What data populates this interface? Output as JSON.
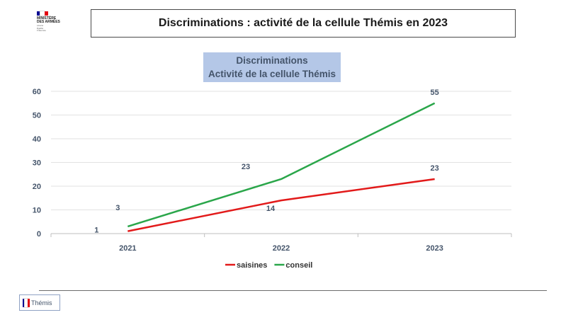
{
  "header": {
    "logo": {
      "org_text": "MINISTÈRE\nDES ARMÉES",
      "motto": "Liberté\nÉgalité\nFraternité",
      "flag_colors": [
        "#000091",
        "#ffffff",
        "#e1000f"
      ]
    },
    "title": "Discriminations : activité de la cellule Thémis en 2023"
  },
  "chart_data": {
    "type": "line",
    "title": "Discriminations\nActivité de la cellule Thémis",
    "categories": [
      "2021",
      "2022",
      "2023"
    ],
    "series": [
      {
        "name": "saisines",
        "values": [
          1,
          14,
          23
        ],
        "color": "#e21a1a"
      },
      {
        "name": "conseil",
        "values": [
          3,
          23,
          55
        ],
        "color": "#2aa64a"
      }
    ],
    "ylim": [
      0,
      60
    ],
    "yticks": [
      0,
      10,
      20,
      30,
      40,
      50,
      60
    ],
    "grid": true,
    "legend": "bottom",
    "label_color": "#44546a"
  },
  "footer": {
    "logo_text": "Thémis"
  }
}
